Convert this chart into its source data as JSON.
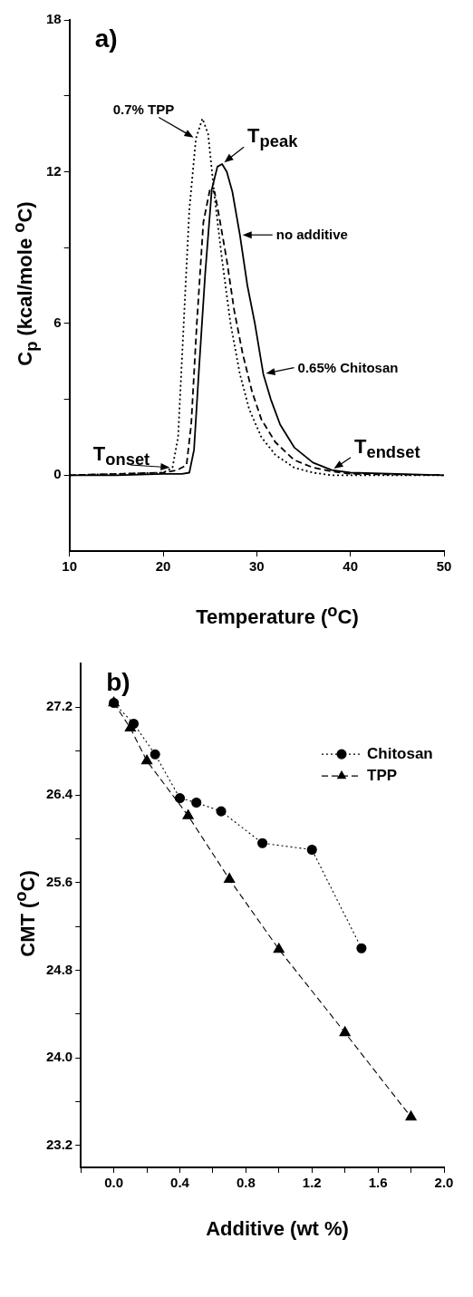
{
  "chart_data": [
    {
      "type": "line",
      "xlabel": "Temperature ($^{o}$C)",
      "ylabel": "C$_{p}$ (kcal/mole $^{o}$C)",
      "xlim": [
        10,
        50
      ],
      "ylim": [
        -3,
        18
      ],
      "xticks": [
        10,
        20,
        30,
        40,
        50
      ],
      "yticks": [
        0,
        {
          "value": 3,
          "label": null
        },
        6,
        {
          "value": 9,
          "label": null
        },
        12,
        {
          "value": 15,
          "label": null
        },
        18
      ],
      "grid": false,
      "legend": false,
      "marker": "none",
      "series": [
        {
          "color": "#000000",
          "line_style": "solid",
          "x": [
            10,
            15,
            20,
            22,
            22.8,
            23.3,
            23.8,
            24.5,
            25.2,
            25.8,
            26.3,
            26.8,
            27.4,
            28.2,
            29,
            29.8,
            30.7,
            31.5,
            32.5,
            34,
            36,
            38,
            40,
            45,
            50
          ],
          "values": [
            0,
            0,
            0.05,
            0.05,
            0.1,
            1,
            4,
            8,
            11.3,
            12.2,
            12.3,
            12,
            11.2,
            9.5,
            7.5,
            6,
            4,
            3,
            2,
            1.1,
            0.5,
            0.2,
            0.1,
            0.05,
            0
          ]
        },
        {
          "color": "#000000",
          "line_style": "dashed",
          "x": [
            10,
            20,
            21.5,
            22.5,
            23,
            23.6,
            24.3,
            25,
            25.5,
            26,
            26.8,
            27.6,
            28.5,
            29.5,
            30.5,
            32,
            34,
            36,
            38,
            40,
            50
          ],
          "values": [
            0,
            0.1,
            0.2,
            0.4,
            2,
            6,
            10,
            11.3,
            11.2,
            10.2,
            8.5,
            6.5,
            4.8,
            3.3,
            2.2,
            1.3,
            0.6,
            0.3,
            0.15,
            0.05,
            0
          ]
        },
        {
          "color": "#000000",
          "line_style": "dotted",
          "x": [
            10,
            20,
            21,
            21.6,
            22.2,
            22.8,
            23.5,
            24.2,
            24.8,
            25.5,
            26.3,
            27.2,
            28.2,
            29.2,
            30.5,
            32,
            34,
            36,
            38,
            50
          ],
          "values": [
            0,
            0.1,
            0.3,
            1.5,
            6,
            10.5,
            13.3,
            14.1,
            13.5,
            11,
            8.5,
            6,
            4,
            2.6,
            1.5,
            0.8,
            0.3,
            0.1,
            0,
            0
          ]
        }
      ],
      "annotations": [
        "a)",
        {
          "text": "0.7% TPP",
          "x": 23.5,
          "y": 13.3
        },
        {
          "text": "T$_{peak}$",
          "x": 26.3,
          "y": 12.3
        },
        {
          "text": "no additive",
          "x": 28.2,
          "y": 9.5
        },
        {
          "text": "0.65% Chitosan",
          "x": 30.7,
          "y": 4
        },
        {
          "text": "T$_{onset}$",
          "x": 21,
          "y": 0.3
        },
        {
          "text": "T$_{endset}$",
          "x": 38,
          "y": 0.2
        }
      ]
    },
    {
      "type": "line",
      "xlabel": "Additive (wt %)",
      "ylabel": "CMT ($^{o}$C)",
      "xlim": [
        -0.2,
        2.0
      ],
      "ylim": [
        23.0,
        27.6
      ],
      "xticks": [
        {
          "value": -0.2,
          "label": null
        },
        "0.0",
        {
          "value": 0.2,
          "label": null
        },
        0.4,
        {
          "value": 0.6,
          "label": null
        },
        0.8,
        {
          "value": 1.0,
          "label": null
        },
        1.2,
        {
          "value": 1.4,
          "label": null
        },
        1.6,
        {
          "value": 1.8,
          "label": null
        },
        "2.0"
      ],
      "yticks": [
        23.2,
        {
          "value": 23.6,
          "label": null
        },
        "24.0",
        {
          "value": 24.4,
          "label": null
        },
        24.8,
        {
          "value": 25.2,
          "label": null
        },
        25.6,
        {
          "value": 26.0,
          "label": null
        },
        26.4,
        {
          "value": 26.8,
          "label": null
        },
        27.2
      ],
      "grid": false,
      "legend": "top right",
      "series": [
        {
          "name": "Chitosan",
          "color": "#000000",
          "line_style": "dotted",
          "marker": "circle",
          "x": [
            0,
            0.12,
            0.25,
            0.4,
            0.5,
            0.65,
            0.9,
            1.2,
            1.5
          ],
          "values": [
            27.24,
            27.05,
            26.77,
            26.37,
            26.33,
            26.25,
            25.96,
            25.9,
            25.0
          ]
        },
        {
          "name": "TPP",
          "color": "#000000",
          "line_style": "dashed",
          "marker": "triangle",
          "x": [
            0,
            0.1,
            0.2,
            0.45,
            0.7,
            1.0,
            1.4,
            1.8
          ],
          "values": [
            27.24,
            27.01,
            26.71,
            26.21,
            25.63,
            24.99,
            24.23,
            23.46
          ]
        }
      ],
      "annotations": [
        "b)"
      ]
    }
  ]
}
